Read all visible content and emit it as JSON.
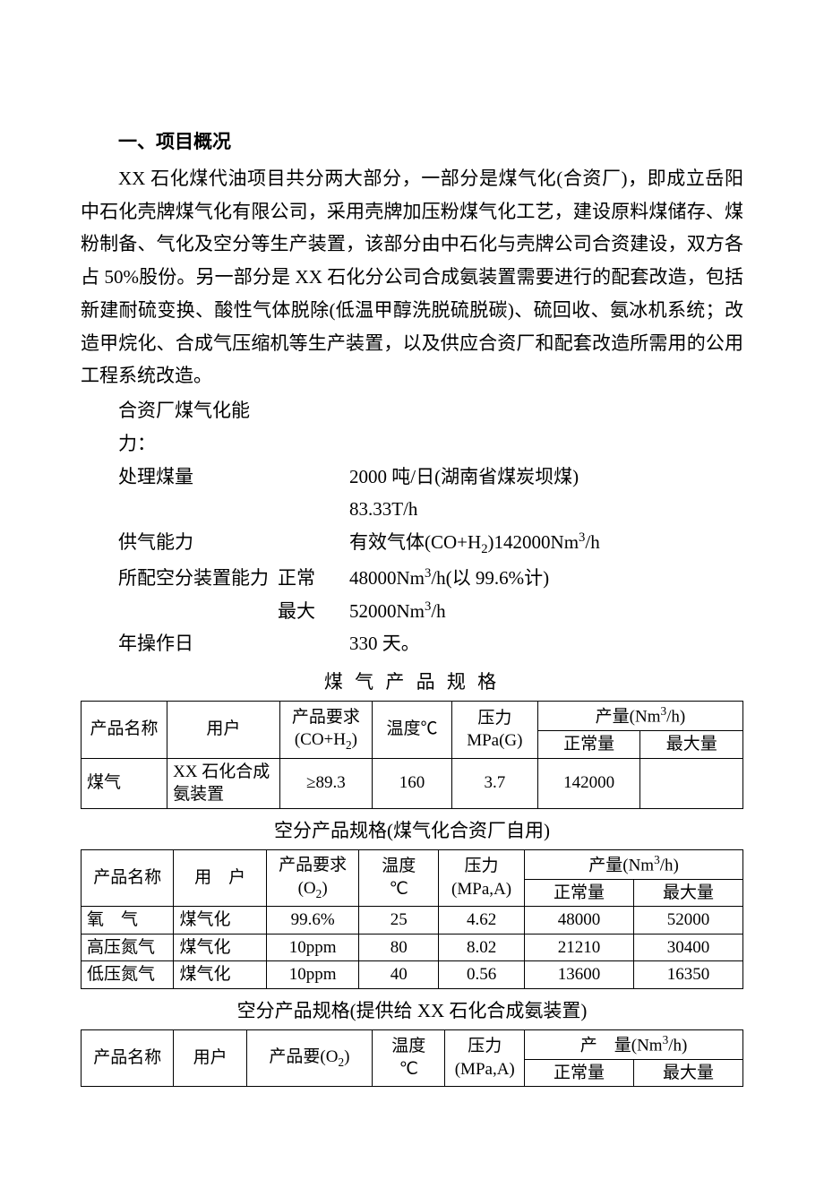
{
  "heading": "一、项目概况",
  "para1": "XX 石化煤代油项目共分两大部分，一部分是煤气化(合资厂)，即成立岳阳中石化壳牌煤气化有限公司，采用壳牌加压粉煤气化工艺，建设原料煤储存、煤粉制备、气化及空分等生产装置，该部分由中石化与壳牌公司合资建设，双方各占 50%股份。另一部分是 XX 石化分公司合成氨装置需要进行的配套改造，包括新建耐硫变换、酸性气体脱除(低温甲醇洗脱硫脱碳)、硫回收、氨冰机系统；改造甲烷化、合成气压缩机等生产装置，以及供应合资厂和配套改造所需用的公用工程系统改造。",
  "specs": {
    "introLabel": "合资厂煤气化能力：",
    "rows": [
      {
        "label": "处理煤量",
        "mid": "",
        "val": "2000 吨/日(湖南省煤炭坝煤)"
      },
      {
        "label": "",
        "mid": "",
        "val": "83.33T/h"
      },
      {
        "label": "供气能力",
        "mid": "",
        "valHtml": "有效气体(CO+H<span class=\"sub\">2</span>)142000Nm<span class=\"sup\">3</span>/h"
      },
      {
        "label": "所配空分装置能力",
        "mid": "正常",
        "valHtml": "48000Nm<span class=\"sup\">3</span>/h(以 99.6%计)"
      },
      {
        "label": "",
        "mid": "最大",
        "valHtml": "52000Nm<span class=\"sup\">3</span>/h"
      },
      {
        "label": "年操作日",
        "mid": "",
        "val": "330 天。"
      }
    ]
  },
  "table1": {
    "title": "煤 气 产 品 规 格",
    "head": {
      "c1": "产品名称",
      "c2": "用户",
      "c3Html": "产品要求<br>(CO+H<span class=\"sub\">2</span>)",
      "c4": "温度℃",
      "c5Html": "压力<br>MPa(G)",
      "c6Html": "产量(Nm<span class=\"sup\">3</span>/h)",
      "c6a": "正常量",
      "c6b": "最大量"
    },
    "rows": [
      {
        "c1": "煤气",
        "c2": "XX 石化合成氨装置",
        "c3": "≥89.3",
        "c4": "160",
        "c5": "3.7",
        "c6a": "142000",
        "c6b": ""
      }
    ],
    "colWidths": [
      "13%",
      "17%",
      "14%",
      "12%",
      "13%",
      "15.5%",
      "15.5%"
    ]
  },
  "table2": {
    "title": "空分产品规格(煤气化合资厂自用)",
    "head": {
      "c1": "产品名称",
      "c2": "用　户",
      "c3Html": "产品要求<br>(O<span class=\"sub\">2</span>)",
      "c4Html": "温度<br>℃",
      "c5Html": "压力<br>(MPa,A)",
      "c6Html": "产量(Nm<span class=\"sup\">3</span>/h)",
      "c6a": "正常量",
      "c6b": "最大量"
    },
    "rows": [
      {
        "c1": "氧　气",
        "c2": "煤气化",
        "c3": "99.6%",
        "c4": "25",
        "c5": "4.62",
        "c6a": "48000",
        "c6b": "52000"
      },
      {
        "c1": "高压氮气",
        "c2": "煤气化",
        "c3": "10ppm",
        "c4": "80",
        "c5": "8.02",
        "c6a": "21210",
        "c6b": "30400"
      },
      {
        "c1": "低压氮气",
        "c2": "煤气化",
        "c3": "10ppm",
        "c4": "40",
        "c5": "0.56",
        "c6a": "13600",
        "c6b": "16350"
      }
    ],
    "colWidths": [
      "14%",
      "14%",
      "14%",
      "12%",
      "13%",
      "16.5%",
      "16.5%"
    ]
  },
  "table3": {
    "title": "空分产品规格(提供给 XX 石化合成氨装置)",
    "head": {
      "c1": "产品名称",
      "c2": "用户",
      "c3Html": "产品要(O<span class=\"sub\">2</span>)",
      "c4Html": "温度<br>℃",
      "c5Html": "压力<br>(MPa,A)",
      "c6Html": "产　量(Nm<span class=\"sup\">3</span>/h)",
      "c6a": "正常量",
      "c6b": "最大量"
    },
    "colWidths": [
      "14%",
      "11%",
      "19%",
      "11%",
      "12%",
      "16.5%",
      "16.5%"
    ]
  },
  "style": {
    "bodyFontSize": 21,
    "tableFontSize": 19,
    "textColor": "#000000",
    "bgColor": "#ffffff",
    "borderColor": "#000000"
  }
}
